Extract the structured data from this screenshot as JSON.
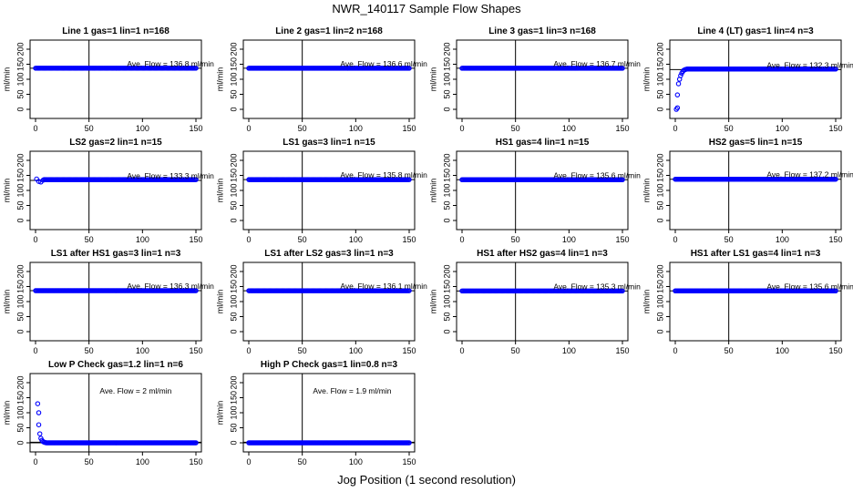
{
  "figure": {
    "title": "NWR_140117  Sample Flow Shapes",
    "xlabel": "Jog Position (1 second resolution)"
  },
  "colors": {
    "points": "#0000ff",
    "axes": "#000000",
    "background": "#ffffff"
  },
  "chart_data": [
    {
      "type": "scatter",
      "title": "Line 1 gas=1 lin=1 n=168",
      "ylabel": "ml/min",
      "annotation": "Ave. Flow =  136.8  ml/min",
      "mean": 136.8,
      "xlim": [
        0,
        150
      ],
      "ylim": [
        0,
        200
      ],
      "xticks": [
        0,
        50,
        100,
        150
      ],
      "yticks": [
        0,
        50,
        100,
        150,
        200
      ],
      "vline": 50,
      "x_range": [
        0,
        150
      ],
      "y_const": 136.8
    },
    {
      "type": "scatter",
      "title": "Line 2 gas=1 lin=2 n=168",
      "ylabel": "ml/min",
      "annotation": "Ave. Flow =  136.6  ml/min",
      "mean": 136.6,
      "xlim": [
        0,
        150
      ],
      "ylim": [
        0,
        200
      ],
      "xticks": [
        0,
        50,
        100,
        150
      ],
      "yticks": [
        0,
        50,
        100,
        150,
        200
      ],
      "vline": 50,
      "x_range": [
        0,
        150
      ],
      "y_const": 136.6
    },
    {
      "type": "scatter",
      "title": "Line 3 gas=1 lin=3 n=168",
      "ylabel": "ml/min",
      "annotation": "Ave. Flow =  136.7  ml/min",
      "mean": 136.7,
      "xlim": [
        0,
        150
      ],
      "ylim": [
        0,
        200
      ],
      "xticks": [
        0,
        50,
        100,
        150
      ],
      "yticks": [
        0,
        50,
        100,
        150,
        200
      ],
      "vline": 50,
      "x_range": [
        0,
        150
      ],
      "y_const": 136.7
    },
    {
      "type": "scatter",
      "title": "Line 4 (LT) gas=1 lin=4 n=3",
      "ylabel": "ml/min",
      "annotation": "Ave. Flow =  132.3  ml/min",
      "mean": 132.3,
      "xlim": [
        0,
        150
      ],
      "ylim": [
        0,
        200
      ],
      "xticks": [
        0,
        50,
        100,
        150
      ],
      "yticks": [
        0,
        50,
        100,
        150,
        200
      ],
      "vline": 50,
      "x_range": [
        12,
        150
      ],
      "y_const": 134,
      "points": [
        [
          1,
          0
        ],
        [
          2,
          5
        ],
        [
          2,
          48
        ],
        [
          3,
          85
        ],
        [
          4,
          100
        ],
        [
          5,
          112
        ],
        [
          6,
          120
        ],
        [
          7,
          126
        ],
        [
          8,
          130
        ],
        [
          9,
          132
        ],
        [
          10,
          133
        ],
        [
          11,
          134
        ]
      ]
    },
    {
      "type": "scatter",
      "title": "LS2 gas=2 lin=1 n=15",
      "ylabel": "ml/min",
      "annotation": "Ave. Flow =  133.3  ml/min",
      "mean": 133.3,
      "xlim": [
        0,
        150
      ],
      "ylim": [
        0,
        200
      ],
      "xticks": [
        0,
        50,
        100,
        150
      ],
      "yticks": [
        0,
        50,
        100,
        150,
        200
      ],
      "vline": 50,
      "x_range": [
        8,
        150
      ],
      "y_const": 136,
      "points": [
        [
          1,
          138
        ],
        [
          3,
          130
        ],
        [
          5,
          128
        ],
        [
          7,
          134
        ]
      ]
    },
    {
      "type": "scatter",
      "title": "LS1 gas=3 lin=1 n=15",
      "ylabel": "ml/min",
      "annotation": "Ave. Flow =  135.8  ml/min",
      "mean": 135.8,
      "xlim": [
        0,
        150
      ],
      "ylim": [
        0,
        200
      ],
      "xticks": [
        0,
        50,
        100,
        150
      ],
      "yticks": [
        0,
        50,
        100,
        150,
        200
      ],
      "vline": 50,
      "x_range": [
        0,
        150
      ],
      "y_const": 135.8
    },
    {
      "type": "scatter",
      "title": "HS1 gas=4 lin=1 n=15",
      "ylabel": "ml/min",
      "annotation": "Ave. Flow =  135.6  ml/min",
      "mean": 135.6,
      "xlim": [
        0,
        150
      ],
      "ylim": [
        0,
        200
      ],
      "xticks": [
        0,
        50,
        100,
        150
      ],
      "yticks": [
        0,
        50,
        100,
        150,
        200
      ],
      "vline": 50,
      "x_range": [
        0,
        150
      ],
      "y_const": 135.6
    },
    {
      "type": "scatter",
      "title": "HS2 gas=5 lin=1 n=15",
      "ylabel": "ml/min",
      "annotation": "Ave. Flow =  137.2  ml/min",
      "mean": 137.2,
      "xlim": [
        0,
        150
      ],
      "ylim": [
        0,
        200
      ],
      "xticks": [
        0,
        50,
        100,
        150
      ],
      "yticks": [
        0,
        50,
        100,
        150,
        200
      ],
      "vline": 50,
      "x_range": [
        0,
        150
      ],
      "y_const": 137.2
    },
    {
      "type": "scatter",
      "title": "LS1 after HS1 gas=3 lin=1 n=3",
      "ylabel": "ml/min",
      "annotation": "Ave. Flow =  136.3  ml/min",
      "mean": 136.3,
      "xlim": [
        0,
        150
      ],
      "ylim": [
        0,
        200
      ],
      "xticks": [
        0,
        50,
        100,
        150
      ],
      "yticks": [
        0,
        50,
        100,
        150,
        200
      ],
      "vline": 50,
      "x_range": [
        0,
        150
      ],
      "y_const": 136.3
    },
    {
      "type": "scatter",
      "title": "LS1 after LS2 gas=3 lin=1 n=3",
      "ylabel": "ml/min",
      "annotation": "Ave. Flow =  136.1  ml/min",
      "mean": 136.1,
      "xlim": [
        0,
        150
      ],
      "ylim": [
        0,
        200
      ],
      "xticks": [
        0,
        50,
        100,
        150
      ],
      "yticks": [
        0,
        50,
        100,
        150,
        200
      ],
      "vline": 50,
      "x_range": [
        0,
        150
      ],
      "y_const": 136.1
    },
    {
      "type": "scatter",
      "title": "HS1 after HS2 gas=4 lin=1 n=3",
      "ylabel": "ml/min",
      "annotation": "Ave. Flow =  135.3  ml/min",
      "mean": 135.3,
      "xlim": [
        0,
        150
      ],
      "ylim": [
        0,
        200
      ],
      "xticks": [
        0,
        50,
        100,
        150
      ],
      "yticks": [
        0,
        50,
        100,
        150,
        200
      ],
      "vline": 50,
      "x_range": [
        0,
        150
      ],
      "y_const": 135.3
    },
    {
      "type": "scatter",
      "title": "HS1 after LS1 gas=4 lin=1 n=3",
      "ylabel": "ml/min",
      "annotation": "Ave. Flow =  135.6  ml/min",
      "mean": 135.6,
      "xlim": [
        0,
        150
      ],
      "ylim": [
        0,
        200
      ],
      "xticks": [
        0,
        50,
        100,
        150
      ],
      "yticks": [
        0,
        50,
        100,
        150,
        200
      ],
      "vline": 50,
      "x_range": [
        0,
        150
      ],
      "y_const": 135.6
    },
    {
      "type": "scatter",
      "title": "Low P Check gas=1.2 lin=1 n=6",
      "ylabel": "ml/min",
      "annotation": "Ave. Flow =  2  ml/min",
      "mean": 2,
      "xlim": [
        0,
        150
      ],
      "ylim": [
        0,
        200
      ],
      "xticks": [
        0,
        50,
        100,
        150
      ],
      "yticks": [
        0,
        50,
        100,
        150,
        200
      ],
      "vline": 50,
      "x_range": [
        12,
        150
      ],
      "y_const": 0,
      "points": [
        [
          2,
          130
        ],
        [
          3,
          100
        ],
        [
          3,
          60
        ],
        [
          4,
          30
        ],
        [
          5,
          15
        ],
        [
          6,
          8
        ],
        [
          7,
          4
        ],
        [
          8,
          2
        ],
        [
          9,
          1
        ],
        [
          10,
          0
        ],
        [
          11,
          0
        ]
      ]
    },
    {
      "type": "scatter",
      "title": "High P Check gas=1 lin=0.8 n=3",
      "ylabel": "ml/min",
      "annotation": "Ave. Flow =  1.9  ml/min",
      "mean": 1.9,
      "xlim": [
        0,
        150
      ],
      "ylim": [
        0,
        200
      ],
      "xticks": [
        0,
        50,
        100,
        150
      ],
      "yticks": [
        0,
        50,
        100,
        150,
        200
      ],
      "vline": 50,
      "x_range": [
        0,
        150
      ],
      "y_const": 0
    }
  ]
}
